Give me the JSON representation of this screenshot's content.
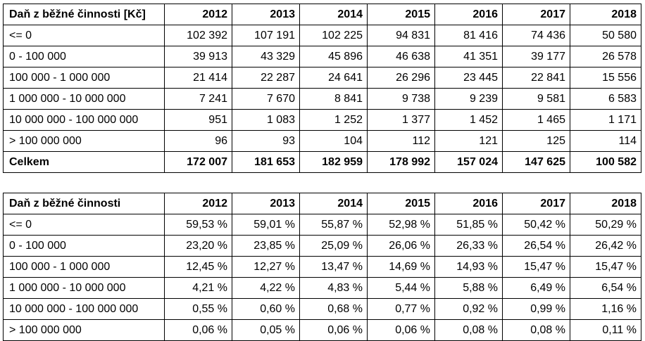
{
  "table1": {
    "header": [
      "Daň z běžné činnosti [Kč]",
      "2012",
      "2013",
      "2014",
      "2015",
      "2016",
      "2017",
      "2018"
    ],
    "rows": [
      [
        "<= 0",
        "102 392",
        "107 191",
        "102 225",
        "94 831",
        "81 416",
        "74 436",
        "50 580"
      ],
      [
        "0 - 100 000",
        "39 913",
        "43 329",
        "45 896",
        "46 638",
        "41 351",
        "39 177",
        "26 578"
      ],
      [
        "100 000 - 1 000 000",
        "21 414",
        "22 287",
        "24 641",
        "26 296",
        "23 445",
        "22 841",
        "15 556"
      ],
      [
        "1 000 000 - 10 000 000",
        "7 241",
        "7 670",
        "8 841",
        "9 738",
        "9 239",
        "9 581",
        "6 583"
      ],
      [
        "10 000 000 - 100 000 000",
        "951",
        "1 083",
        "1 252",
        "1 377",
        "1 452",
        "1 465",
        "1 171"
      ],
      [
        "> 100 000 000",
        "96",
        "93",
        "104",
        "112",
        "121",
        "125",
        "114"
      ]
    ],
    "total": [
      "Celkem",
      "172 007",
      "181 653",
      "182 959",
      "178 992",
      "157 024",
      "147 625",
      "100 582"
    ]
  },
  "table2": {
    "header": [
      "Daň z běžné činnosti",
      "2012",
      "2013",
      "2014",
      "2015",
      "2016",
      "2017",
      "2018"
    ],
    "rows": [
      [
        "<= 0",
        "59,53 %",
        "59,01 %",
        "55,87 %",
        "52,98 %",
        "51,85 %",
        "50,42 %",
        "50,29 %"
      ],
      [
        "0 - 100 000",
        "23,20 %",
        "23,85 %",
        "25,09 %",
        "26,06 %",
        "26,33 %",
        "26,54 %",
        "26,42 %"
      ],
      [
        "100 000 - 1 000 000",
        "12,45 %",
        "12,27 %",
        "13,47 %",
        "14,69 %",
        "14,93 %",
        "15,47 %",
        "15,47 %"
      ],
      [
        "1 000 000 - 10 000 000",
        "4,21 %",
        "4,22 %",
        "4,83 %",
        "5,44 %",
        "5,88 %",
        "6,49 %",
        "6,54 %"
      ],
      [
        "10 000 000 - 100 000 000",
        "0,55 %",
        "0,60 %",
        "0,68 %",
        "0,77 %",
        "0,92 %",
        "0,99 %",
        "1,16 %"
      ],
      [
        "> 100 000 000",
        "0,06 %",
        "0,05 %",
        "0,06 %",
        "0,06 %",
        "0,08 %",
        "0,08 %",
        "0,11 %"
      ]
    ]
  }
}
